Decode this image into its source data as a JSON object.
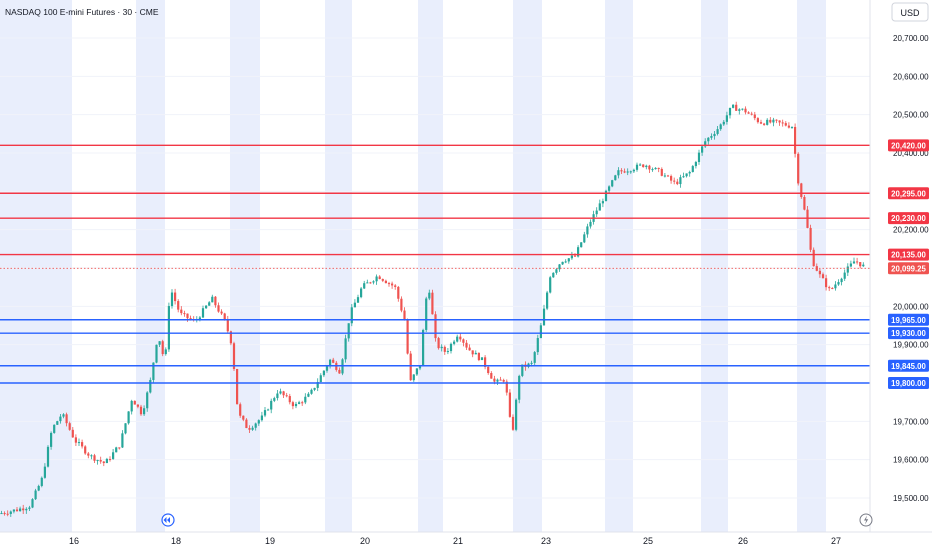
{
  "chart_data": {
    "type": "candlestick",
    "title": "NASDAQ 100 E-mini Futures · 30 · CME",
    "currency": "USD",
    "x_ticks": [
      "16",
      "18",
      "19",
      "20",
      "21",
      "23",
      "25",
      "26",
      "27"
    ],
    "y_ticks": [
      "20,700.00",
      "20,600.00",
      "20,500.00",
      "20,400.00",
      "20,300.00",
      "20,200.00",
      "20,100.00",
      "20,000.00",
      "19,900.00",
      "19,700.00",
      "19,600.00",
      "19,500.00"
    ],
    "ylim": [
      19430,
      20750
    ],
    "resistance_levels": [
      {
        "label": "20,420.00",
        "value": 20420
      },
      {
        "label": "20,295.00",
        "value": 20295
      },
      {
        "label": "20,230.00",
        "value": 20230
      },
      {
        "label": "20,135.00",
        "value": 20135
      }
    ],
    "support_levels": [
      {
        "label": "19,965.00",
        "value": 19965
      },
      {
        "label": "19,930.00",
        "value": 19930
      },
      {
        "label": "19,845.00",
        "value": 19845
      },
      {
        "label": "19,800.00",
        "value": 19800
      }
    ],
    "last_price": {
      "label": "20,099.25",
      "value": 20099.25
    },
    "price_path": [
      [
        0,
        19460
      ],
      [
        18,
        19470
      ],
      [
        30,
        19480
      ],
      [
        42,
        19550
      ],
      [
        52,
        19680
      ],
      [
        62,
        19720
      ],
      [
        75,
        19650
      ],
      [
        90,
        19610
      ],
      [
        105,
        19590
      ],
      [
        120,
        19640
      ],
      [
        132,
        19760
      ],
      [
        142,
        19720
      ],
      [
        150,
        19800
      ],
      [
        158,
        19930
      ],
      [
        165,
        19850
      ],
      [
        170,
        20050
      ],
      [
        180,
        19980
      ],
      [
        195,
        19960
      ],
      [
        212,
        20020
      ],
      [
        225,
        19960
      ],
      [
        232,
        19900
      ],
      [
        238,
        19720
      ],
      [
        248,
        19680
      ],
      [
        262,
        19710
      ],
      [
        278,
        19780
      ],
      [
        295,
        19740
      ],
      [
        310,
        19770
      ],
      [
        330,
        19860
      ],
      [
        340,
        19830
      ],
      [
        350,
        19980
      ],
      [
        362,
        20050
      ],
      [
        378,
        20080
      ],
      [
        395,
        20050
      ],
      [
        405,
        19960
      ],
      [
        410,
        19800
      ],
      [
        420,
        19850
      ],
      [
        428,
        20070
      ],
      [
        436,
        19900
      ],
      [
        446,
        19880
      ],
      [
        458,
        19930
      ],
      [
        468,
        19890
      ],
      [
        482,
        19860
      ],
      [
        495,
        19800
      ],
      [
        505,
        19810
      ],
      [
        512,
        19660
      ],
      [
        520,
        19840
      ],
      [
        532,
        19850
      ],
      [
        542,
        19960
      ],
      [
        550,
        20080
      ],
      [
        562,
        20120
      ],
      [
        575,
        20130
      ],
      [
        590,
        20220
      ],
      [
        605,
        20290
      ],
      [
        618,
        20350
      ],
      [
        632,
        20360
      ],
      [
        645,
        20370
      ],
      [
        660,
        20350
      ],
      [
        675,
        20320
      ],
      [
        690,
        20350
      ],
      [
        705,
        20430
      ],
      [
        720,
        20470
      ],
      [
        732,
        20520
      ],
      [
        745,
        20510
      ],
      [
        760,
        20480
      ],
      [
        775,
        20480
      ],
      [
        792,
        20470
      ],
      [
        798,
        20330
      ],
      [
        806,
        20230
      ],
      [
        812,
        20120
      ],
      [
        820,
        20080
      ],
      [
        830,
        20040
      ],
      [
        842,
        20080
      ],
      [
        855,
        20120
      ],
      [
        866,
        20100
      ]
    ]
  },
  "session_bands": [
    {
      "from": 0,
      "to": 72
    },
    {
      "from": 136,
      "to": 165
    },
    {
      "from": 230,
      "to": 260
    },
    {
      "from": 325,
      "to": 352
    },
    {
      "from": 418,
      "to": 443
    },
    {
      "from": 513,
      "to": 542
    },
    {
      "from": 605,
      "to": 633
    },
    {
      "from": 701,
      "to": 728
    },
    {
      "from": 797,
      "to": 826
    }
  ],
  "x_tick_positions": [
    74,
    176,
    270,
    365,
    458,
    546,
    648,
    743,
    836
  ],
  "colors": {
    "up": "#26a69a",
    "down": "#ef5350",
    "resistance": "#f23645",
    "support": "#2962ff",
    "band": "#e9eefc",
    "axis_text": "#131722"
  },
  "icons": {
    "replay": "rewind-icon",
    "alert": "lightning-icon"
  }
}
